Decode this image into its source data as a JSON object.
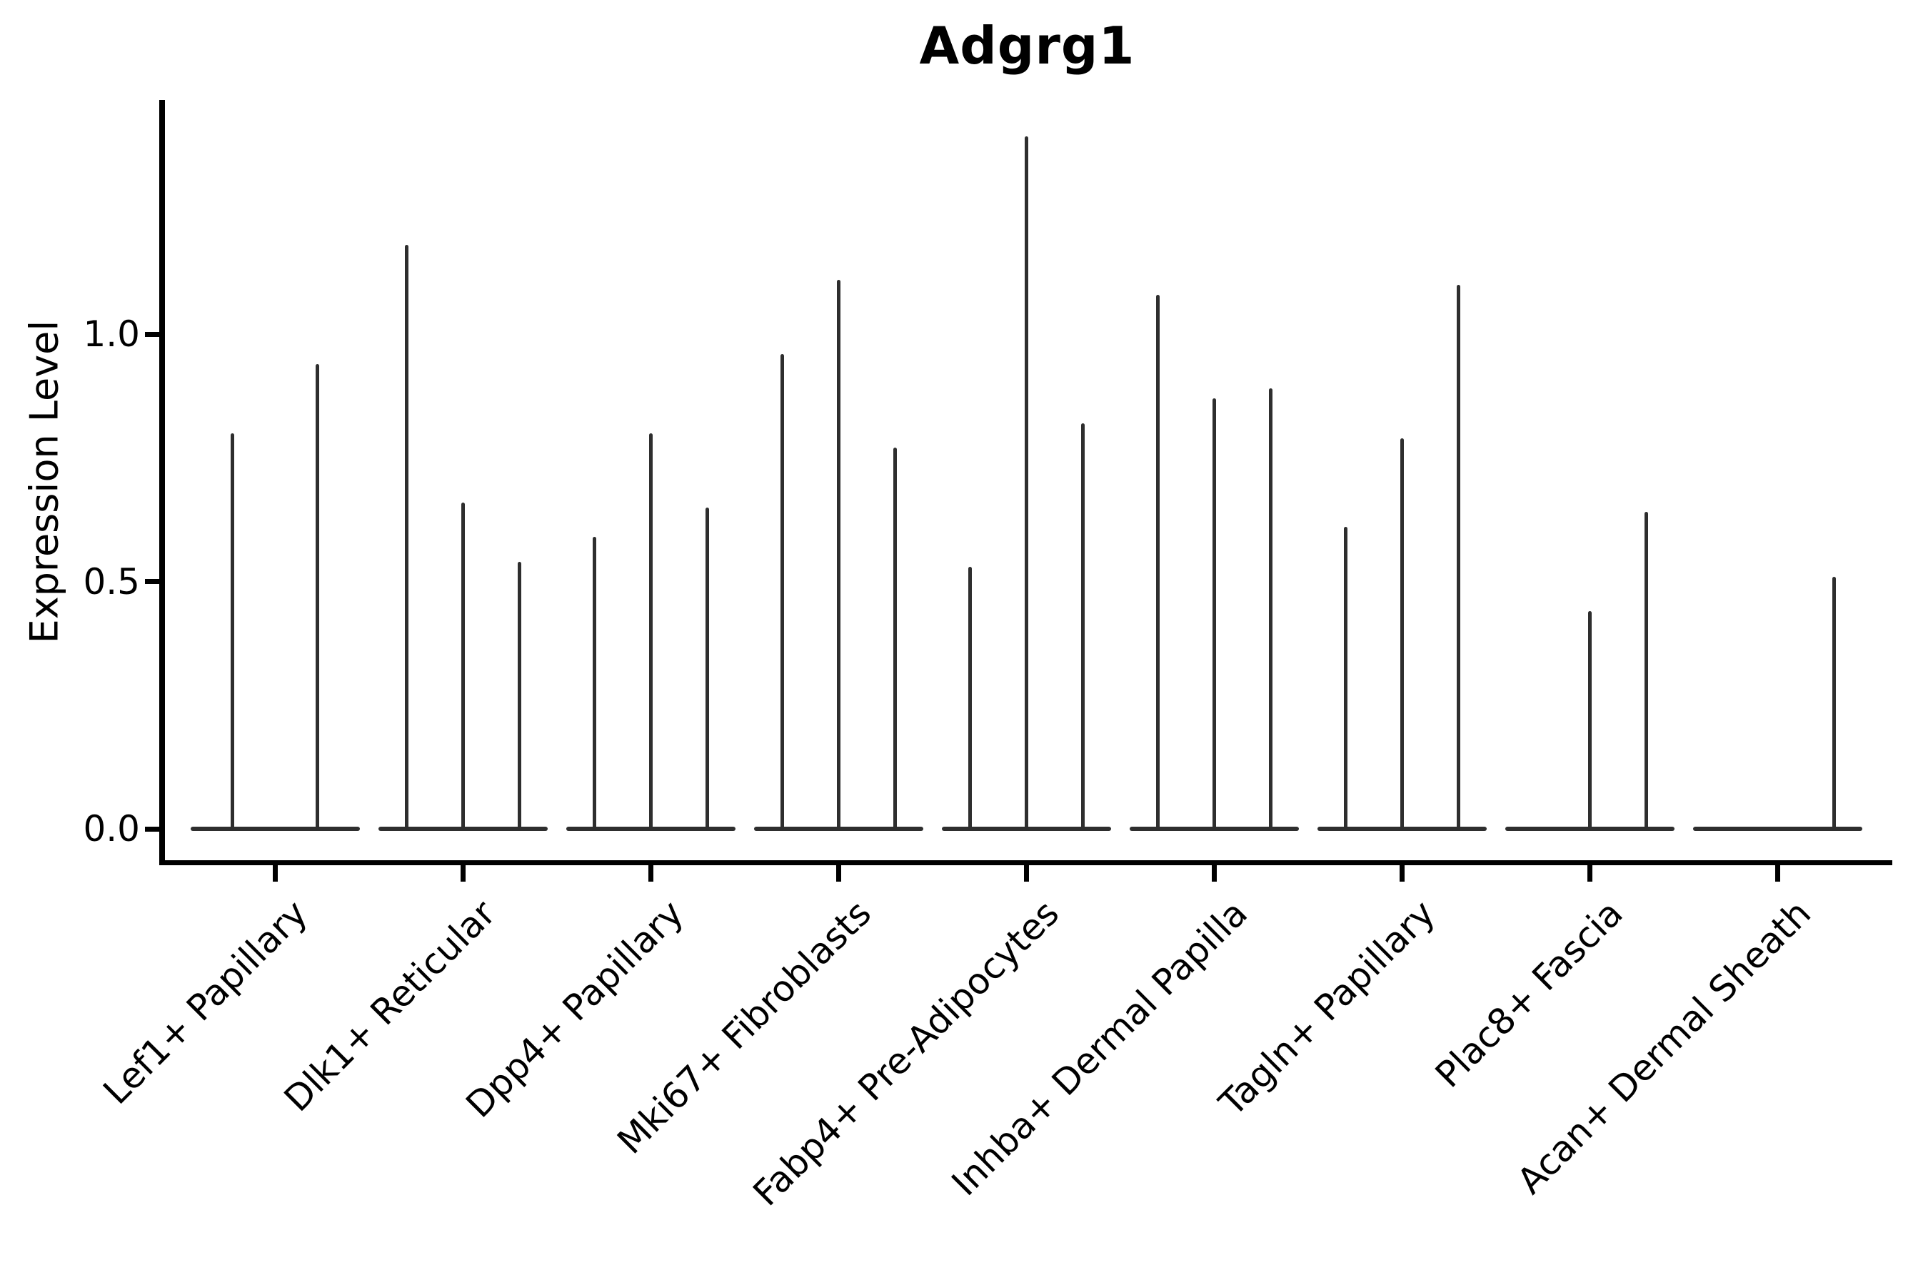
{
  "chart_data": {
    "type": "violin",
    "title": "Adgrg1",
    "xlabel": "",
    "ylabel": "Expression Level",
    "yticks": [
      {
        "label": "0.0",
        "value": 0.0
      },
      {
        "label": "0.5",
        "value": 0.5
      },
      {
        "label": "1.0",
        "value": 1.0
      }
    ],
    "ylim": [
      -0.07,
      1.47
    ],
    "grid": false,
    "legend": "none",
    "violin_color": "#2e2e2e",
    "axis_color": "#000000",
    "categories": [
      "Lef1+ Papillary",
      "Dlk1+ Reticular",
      "Dpp4+ Papillary",
      "Mki67+ Fibroblasts",
      "Fabp4+ Pre-Adipocytes",
      "Inhba+ Dermal Papilla",
      "Tagln+ Papillary",
      "Plac8+ Fascia",
      "Acan+ Dermal Sheath"
    ],
    "groups": [
      {
        "label": "Lef1+ Papillary",
        "violin_max_values": [
          0.8,
          0.94
        ]
      },
      {
        "label": "Dlk1+ Reticular",
        "violin_max_values": [
          1.18,
          0.66,
          0.54
        ]
      },
      {
        "label": "Dpp4+ Papillary",
        "violin_max_values": [
          0.59,
          0.8,
          0.65
        ]
      },
      {
        "label": "Mki67+ Fibroblasts",
        "violin_max_values": [
          0.96,
          1.11,
          0.77
        ]
      },
      {
        "label": "Fabp4+ Pre-Adipocytes",
        "violin_max_values": [
          0.53,
          1.4,
          0.82
        ]
      },
      {
        "label": "Inhba+ Dermal Papilla",
        "violin_max_values": [
          1.08,
          0.87,
          0.89
        ]
      },
      {
        "label": "Tagln+ Papillary",
        "violin_max_values": [
          0.61,
          0.79,
          1.1
        ]
      },
      {
        "label": "Plac8+ Fascia",
        "violin_max_values": [
          0.0,
          0.44,
          0.64
        ]
      },
      {
        "label": "Acan+ Dermal Sheath",
        "violin_max_values": [
          0.0,
          0.0,
          0.51
        ]
      }
    ],
    "description": "Expression of Adgrg1 across fibroblast subpopulations; each category shows thin violins: flat density at 0 with narrow spikes reaching the maximum expression value."
  }
}
